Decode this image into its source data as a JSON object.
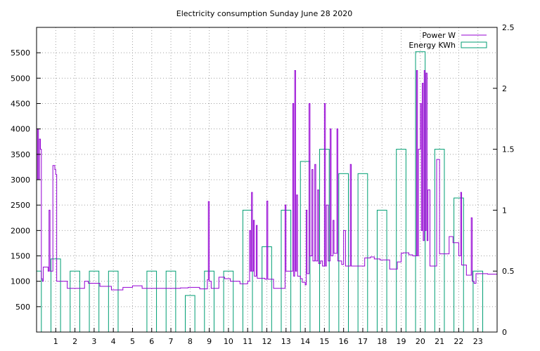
{
  "chart_data": {
    "type": "bar+line",
    "title": "Electricity consumption Sunday June 28 2020",
    "xlabel": "",
    "ylabel": "",
    "x_ticks": [
      "1",
      "2",
      "3",
      "4",
      "5",
      "6",
      "7",
      "8",
      "9",
      "10",
      "11",
      "12",
      "13",
      "14",
      "15",
      "16",
      "17",
      "18",
      "19",
      "20",
      "21",
      "22",
      "23"
    ],
    "xlim": [
      0,
      24
    ],
    "ylim": [
      0,
      6000
    ],
    "y_ticks": [
      500,
      1000,
      1500,
      2000,
      2500,
      3000,
      3500,
      4000,
      4500,
      5000,
      5500
    ],
    "y2lim": [
      0,
      2.5
    ],
    "y2_ticks": [
      0,
      0.5,
      1,
      1.5,
      2,
      2.5
    ],
    "grid": true,
    "legend_position": "top-right",
    "colors": {
      "power": "#9400d3",
      "energy": "#009e73"
    },
    "series": [
      {
        "name": "Power W",
        "axis": "left",
        "style": "steps",
        "points": [
          [
            0.0,
            3000
          ],
          [
            0.05,
            4000
          ],
          [
            0.1,
            3000
          ],
          [
            0.15,
            3800
          ],
          [
            0.2,
            3600
          ],
          [
            0.25,
            1050
          ],
          [
            0.3,
            1000
          ],
          [
            0.35,
            1280
          ],
          [
            0.6,
            1200
          ],
          [
            0.65,
            2400
          ],
          [
            0.7,
            1200
          ],
          [
            0.8,
            1200
          ],
          [
            0.85,
            3280
          ],
          [
            0.95,
            3200
          ],
          [
            1.0,
            3100
          ],
          [
            1.05,
            1000
          ],
          [
            1.5,
            1000
          ],
          [
            1.6,
            860
          ],
          [
            2.0,
            860
          ],
          [
            2.3,
            860
          ],
          [
            2.5,
            1000
          ],
          [
            2.7,
            960
          ],
          [
            3.3,
            900
          ],
          [
            3.8,
            900
          ],
          [
            3.9,
            830
          ],
          [
            4.3,
            830
          ],
          [
            4.5,
            880
          ],
          [
            5.0,
            910
          ],
          [
            5.5,
            860
          ],
          [
            6.0,
            860
          ],
          [
            7.5,
            870
          ],
          [
            7.9,
            880
          ],
          [
            8.5,
            850
          ],
          [
            8.9,
            1030
          ],
          [
            8.95,
            2570
          ],
          [
            9.0,
            1000
          ],
          [
            9.1,
            860
          ],
          [
            9.5,
            1080
          ],
          [
            9.8,
            1050
          ],
          [
            10.1,
            1000
          ],
          [
            10.6,
            950
          ],
          [
            11.0,
            1000
          ],
          [
            11.1,
            2000
          ],
          [
            11.15,
            1200
          ],
          [
            11.2,
            2750
          ],
          [
            11.25,
            1200
          ],
          [
            11.3,
            2200
          ],
          [
            11.35,
            1100
          ],
          [
            11.45,
            2100
          ],
          [
            11.5,
            1060
          ],
          [
            11.9,
            1040
          ],
          [
            12.0,
            2580
          ],
          [
            12.05,
            1040
          ],
          [
            12.35,
            860
          ],
          [
            12.8,
            860
          ],
          [
            12.95,
            2500
          ],
          [
            13.0,
            1200
          ],
          [
            13.2,
            1200
          ],
          [
            13.35,
            4500
          ],
          [
            13.4,
            1100
          ],
          [
            13.45,
            5150
          ],
          [
            13.5,
            1200
          ],
          [
            13.55,
            2700
          ],
          [
            13.6,
            1100
          ],
          [
            13.75,
            1050
          ],
          [
            13.85,
            980
          ],
          [
            14.0,
            930
          ],
          [
            14.05,
            2400
          ],
          [
            14.1,
            1150
          ],
          [
            14.2,
            4500
          ],
          [
            14.25,
            1500
          ],
          [
            14.35,
            3200
          ],
          [
            14.4,
            1400
          ],
          [
            14.5,
            3300
          ],
          [
            14.55,
            1400
          ],
          [
            14.65,
            2800
          ],
          [
            14.7,
            1350
          ],
          [
            14.8,
            1400
          ],
          [
            14.9,
            1300
          ],
          [
            15.0,
            4500
          ],
          [
            15.05,
            1300
          ],
          [
            15.1,
            2500
          ],
          [
            15.2,
            1400
          ],
          [
            15.3,
            4000
          ],
          [
            15.35,
            1500
          ],
          [
            15.45,
            2200
          ],
          [
            15.5,
            1550
          ],
          [
            15.65,
            4000
          ],
          [
            15.7,
            1400
          ],
          [
            15.9,
            1330
          ],
          [
            16.0,
            2000
          ],
          [
            16.1,
            1300
          ],
          [
            16.35,
            3300
          ],
          [
            16.4,
            1300
          ],
          [
            16.6,
            1300
          ],
          [
            17.0,
            1300
          ],
          [
            17.1,
            1460
          ],
          [
            17.4,
            1480
          ],
          [
            17.6,
            1440
          ],
          [
            17.9,
            1420
          ],
          [
            18.4,
            1240
          ],
          [
            18.8,
            1380
          ],
          [
            19.0,
            1550
          ],
          [
            19.1,
            1560
          ],
          [
            19.4,
            1520
          ],
          [
            19.6,
            1500
          ],
          [
            19.8,
            5150
          ],
          [
            19.85,
            1500
          ],
          [
            19.9,
            3600
          ],
          [
            20.0,
            4500
          ],
          [
            20.05,
            2000
          ],
          [
            20.1,
            4900
          ],
          [
            20.15,
            1800
          ],
          [
            20.2,
            5150
          ],
          [
            20.25,
            2000
          ],
          [
            20.3,
            5100
          ],
          [
            20.35,
            1800
          ],
          [
            20.4,
            2800
          ],
          [
            20.5,
            1300
          ],
          [
            20.8,
            1300
          ],
          [
            20.85,
            3400
          ],
          [
            21.0,
            1540
          ],
          [
            21.5,
            1880
          ],
          [
            21.7,
            1760
          ],
          [
            21.8,
            1760
          ],
          [
            22.0,
            1500
          ],
          [
            22.1,
            2750
          ],
          [
            22.15,
            1320
          ],
          [
            22.4,
            1120
          ],
          [
            22.65,
            2250
          ],
          [
            22.7,
            1000
          ],
          [
            22.8,
            960
          ],
          [
            22.9,
            1150
          ],
          [
            23.1,
            1150
          ],
          [
            23.5,
            1140
          ],
          [
            24.0,
            1140
          ]
        ]
      },
      {
        "name": "Energy KWh",
        "axis": "right",
        "style": "histeps",
        "values": [
          0.5,
          0.6,
          0.5,
          0.5,
          0.5,
          0,
          0.5,
          0.5,
          0.3,
          0.5,
          0.5,
          1.0,
          0.7,
          1.0,
          1.4,
          1.5,
          1.3,
          1.3,
          1.0,
          1.5,
          2.3,
          1.5,
          1.1,
          0.5
        ]
      }
    ]
  }
}
